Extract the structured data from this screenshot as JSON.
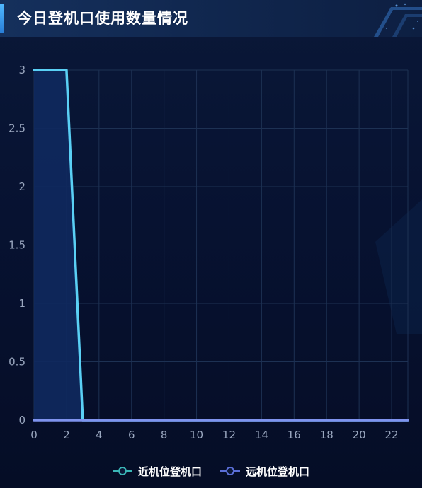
{
  "panel": {
    "title": "今日登机口使用数量情况"
  },
  "colors": {
    "near_line": "#5ad0f5",
    "near_fill": "#10295e",
    "far_line": "#7f93ee",
    "grid": "#1d3153",
    "tick_label": "#9aa7bf",
    "near_legend_icon": "#3ab5b6",
    "far_legend_icon": "#5b6fd8"
  },
  "chart_data": {
    "type": "line",
    "xlim": [
      0,
      23
    ],
    "ylim": [
      0,
      3
    ],
    "x_ticks": [
      0,
      2,
      4,
      6,
      8,
      10,
      12,
      14,
      16,
      18,
      20,
      22
    ],
    "y_ticks": [
      0,
      0.5,
      1,
      1.5,
      2,
      2.5,
      3
    ],
    "x_tick_labels": [
      "0",
      "2",
      "4",
      "6",
      "8",
      "10",
      "12",
      "14",
      "16",
      "18",
      "20",
      "22"
    ],
    "y_tick_labels": [
      "0",
      "0.5",
      "1",
      "1.5",
      "2",
      "2.5",
      "3"
    ],
    "grid": true,
    "legend_position": "bottom-center",
    "series": [
      {
        "name": "近机位登机口",
        "x": [
          0,
          1,
          2,
          3,
          4,
          5,
          6,
          7,
          8,
          9,
          10,
          11,
          12,
          13,
          14,
          15,
          16,
          17,
          18,
          19,
          20,
          21,
          22,
          23
        ],
        "values": [
          3,
          3,
          3,
          0,
          0,
          0,
          0,
          0,
          0,
          0,
          0,
          0,
          0,
          0,
          0,
          0,
          0,
          0,
          0,
          0,
          0,
          0,
          0,
          0
        ],
        "area": true
      },
      {
        "name": "远机位登机口",
        "x": [
          0,
          1,
          2,
          3,
          4,
          5,
          6,
          7,
          8,
          9,
          10,
          11,
          12,
          13,
          14,
          15,
          16,
          17,
          18,
          19,
          20,
          21,
          22,
          23
        ],
        "values": [
          0,
          0,
          0,
          0,
          0,
          0,
          0,
          0,
          0,
          0,
          0,
          0,
          0,
          0,
          0,
          0,
          0,
          0,
          0,
          0,
          0,
          0,
          0,
          0
        ],
        "area": false
      }
    ]
  }
}
